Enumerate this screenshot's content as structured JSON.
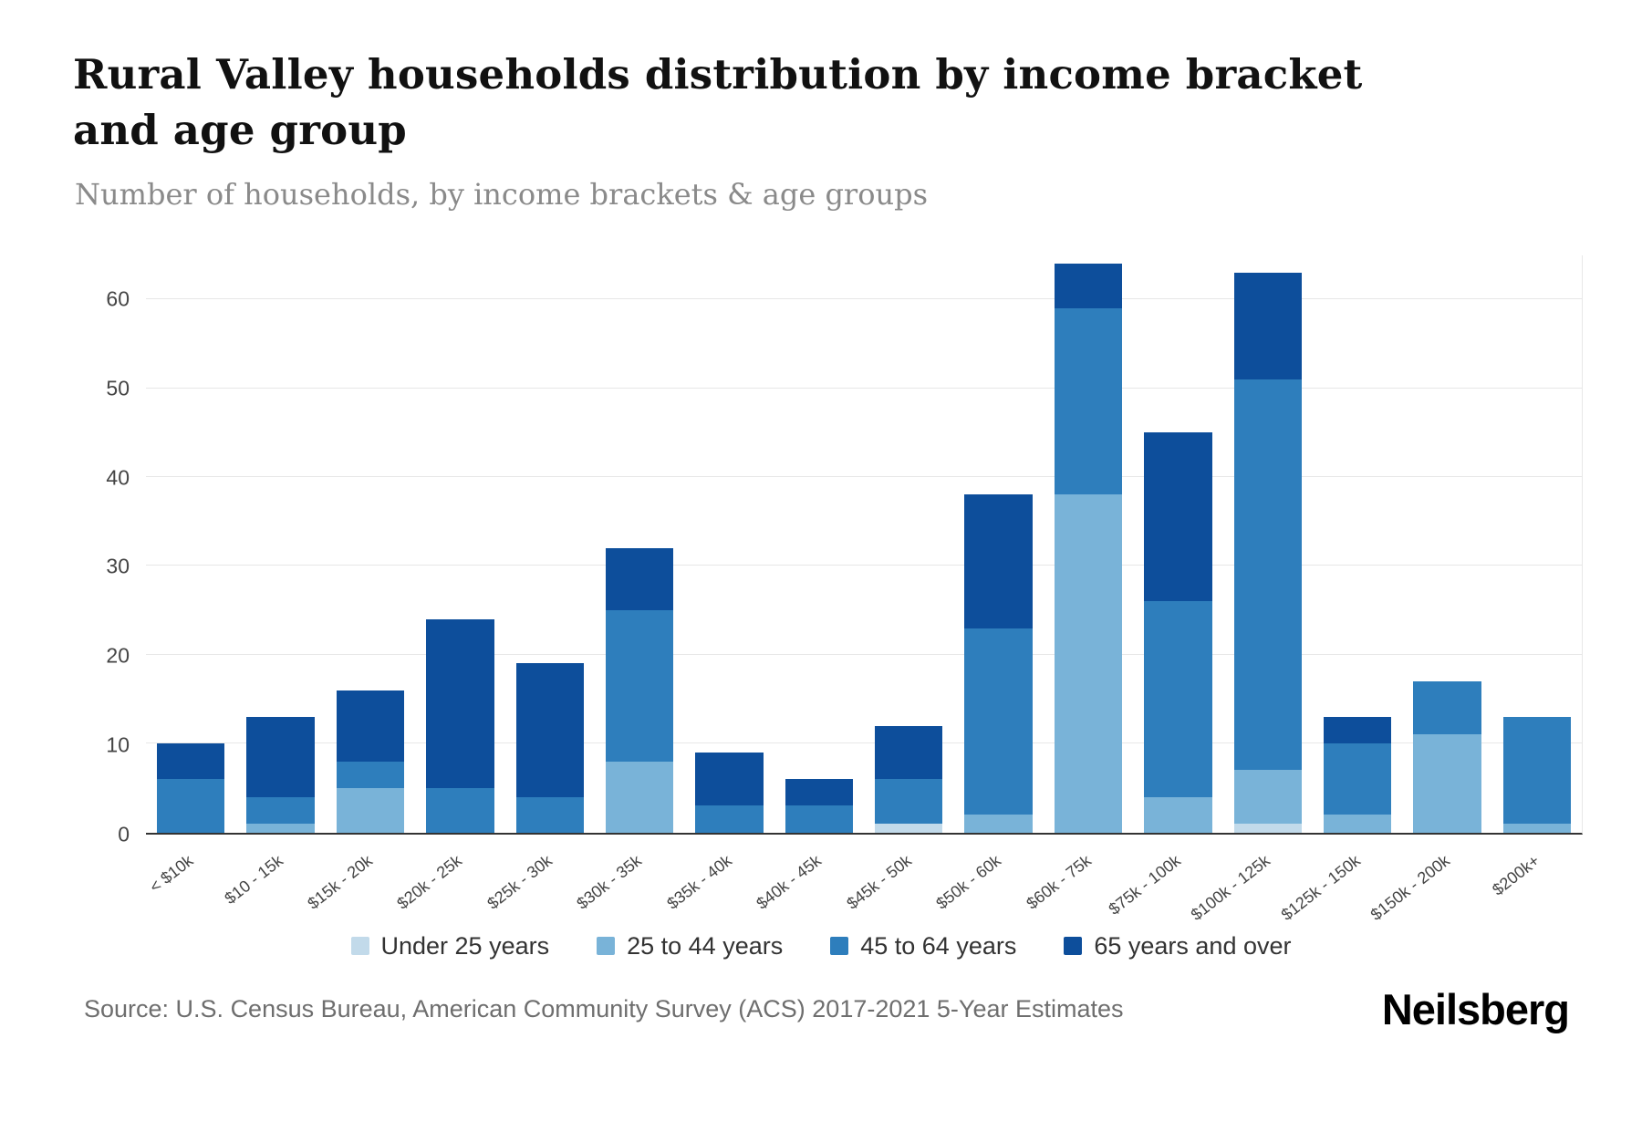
{
  "header": {
    "title": "Rural Valley households distribution by income bracket and age group",
    "subtitle": "Number of households, by income brackets & age groups"
  },
  "footer": {
    "source": "Source: U.S. Census Bureau, American Community Survey (ACS) 2017-2021 5-Year Estimates",
    "brand": "Neilsberg"
  },
  "chart_data": {
    "type": "bar",
    "stacked": true,
    "title": "Rural Valley households distribution by income bracket and age group",
    "subtitle": "Number of households, by income brackets & age groups",
    "xlabel": "",
    "ylabel": "",
    "ylim": [
      0,
      65
    ],
    "yticks": [
      0,
      10,
      20,
      30,
      40,
      50,
      60
    ],
    "grid": "horizontal",
    "legend_position": "bottom",
    "categories": [
      "< $10k",
      "$10 - 15k",
      "$15k - 20k",
      "$20k - 25k",
      "$25k - 30k",
      "$30k - 35k",
      "$35k - 40k",
      "$40k - 45k",
      "$45k - 50k",
      "$50k - 60k",
      "$60k - 75k",
      "$75k - 100k",
      "$100k - 125k",
      "$125k - 150k",
      "$150k - 200k",
      "$200k+"
    ],
    "series": [
      {
        "name": "Under 25 years",
        "color": "#c2daea",
        "values": [
          0,
          0,
          0,
          0,
          0,
          0,
          0,
          0,
          1,
          0,
          0,
          0,
          1,
          0,
          0,
          0
        ]
      },
      {
        "name": "25 to 44 years",
        "color": "#79b3d8",
        "values": [
          0,
          1,
          5,
          0,
          0,
          8,
          0,
          0,
          0,
          2,
          38,
          4,
          6,
          2,
          11,
          1
        ]
      },
      {
        "name": "45 to 64 years",
        "color": "#2e7ebc",
        "values": [
          6,
          3,
          3,
          5,
          4,
          17,
          3,
          3,
          5,
          21,
          21,
          22,
          44,
          8,
          6,
          12
        ]
      },
      {
        "name": "65 years and over",
        "color": "#0d4e9b",
        "values": [
          4,
          9,
          8,
          19,
          15,
          7,
          6,
          3,
          6,
          15,
          5,
          19,
          12,
          3,
          0,
          0
        ]
      }
    ]
  }
}
